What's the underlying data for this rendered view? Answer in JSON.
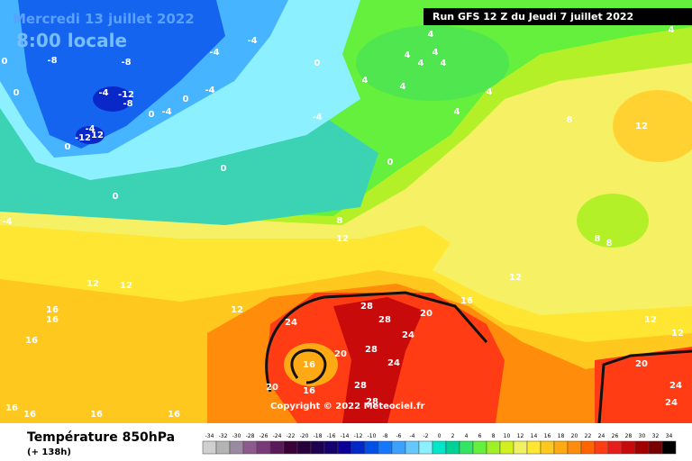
{
  "header": {
    "date": "Mercredi 13 juillet 2022",
    "time": "8:00 locale",
    "run": "Run GFS 12 Z du Jeudi 7 juillet 2022"
  },
  "copyright": "Copyright © 2022 Meteociel.fr",
  "footer": {
    "title": "Température 850hPa",
    "lead": "(+ 138h)"
  },
  "legend": {
    "values": [
      -34,
      -32,
      -30,
      -28,
      -26,
      -24,
      -22,
      -20,
      -18,
      -16,
      -14,
      -12,
      -10,
      -8,
      -6,
      -4,
      -2,
      0,
      2,
      4,
      6,
      8,
      10,
      12,
      14,
      16,
      18,
      20,
      22,
      24,
      26,
      28,
      30,
      32,
      34
    ],
    "colors": [
      "#d0d0d0",
      "#b4b4b4",
      "#9a8aa0",
      "#8c5a8c",
      "#7a3a7a",
      "#5a1a5a",
      "#3a003a",
      "#28003c",
      "#1e0050",
      "#14006e",
      "#0a0096",
      "#0028c8",
      "#0050e6",
      "#1478ff",
      "#3ca0ff",
      "#64c8ff",
      "#8cf0ff",
      "#00e6c8",
      "#00d296",
      "#32e664",
      "#64f03c",
      "#a0f028",
      "#d2f01e",
      "#f0f064",
      "#ffe632",
      "#ffc81e",
      "#ffaa14",
      "#ff8c0a",
      "#ff6400",
      "#ff3c14",
      "#e61e1e",
      "#c80a0a",
      "#a00000",
      "#780000",
      "#000000"
    ]
  },
  "map_labels": [
    -4,
    -4,
    -8,
    -8,
    0,
    4,
    4,
    4,
    4,
    4,
    4,
    4,
    4,
    4,
    8,
    12,
    -12,
    -4,
    -8,
    0,
    -4,
    -4,
    0,
    -4,
    12,
    -12,
    0,
    -4,
    0,
    0,
    0,
    8,
    12,
    8,
    8,
    12,
    12,
    12,
    16,
    16,
    16,
    24,
    28,
    28,
    20,
    24,
    28,
    20,
    24,
    16,
    28,
    20,
    16,
    28,
    16,
    12,
    12,
    12,
    20,
    24,
    24,
    16,
    16,
    16,
    16,
    0,
    0,
    -4,
    4
  ]
}
